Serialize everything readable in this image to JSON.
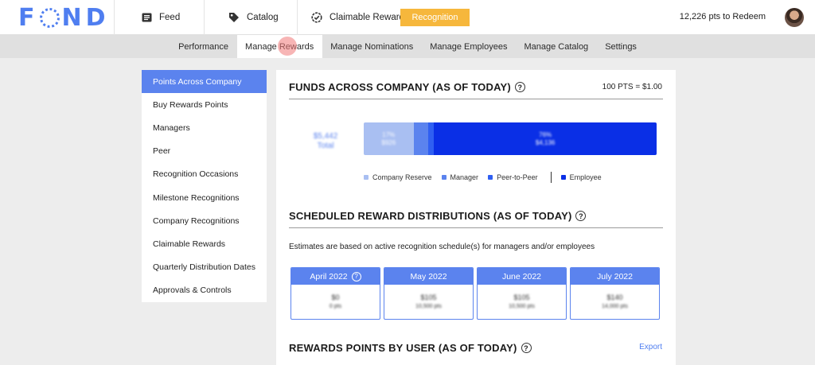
{
  "brand": {
    "logo_text": "FOND",
    "accent": "#5b83ee",
    "button_color": "#f6b73c"
  },
  "topnav": {
    "items": [
      {
        "label": "Feed",
        "icon": "feed-icon"
      },
      {
        "label": "Catalog",
        "icon": "tag-icon"
      },
      {
        "label": "Claimable Rewards",
        "icon": "check-badge-icon"
      }
    ],
    "recognition_button": "Recognition",
    "points": "12,226 pts to Redeem"
  },
  "subnav": {
    "tabs": [
      "Performance",
      "Manage Rewards",
      "Manage Nominations",
      "Manage Employees",
      "Manage Catalog",
      "Settings"
    ],
    "active": "Manage Rewards"
  },
  "sidebar": {
    "items": [
      "Points Across Company",
      "Buy Rewards Points",
      "Managers",
      "Peer",
      "Recognition Occasions",
      "Milestone Recognitions",
      "Company Recognitions",
      "Claimable Rewards",
      "Quarterly Distribution Dates",
      "Approvals & Controls"
    ],
    "active": "Points Across Company"
  },
  "funds": {
    "title": "FUNDS ACROSS COMPANY (AS OF TODAY)",
    "rate": "100 PTS = $1.00",
    "total_value": "$5,442",
    "total_label": "Total",
    "segments": [
      {
        "name": "Company Reserve",
        "color": "#a9bff2",
        "share": 0.17,
        "pct": "17%",
        "amt": "$926"
      },
      {
        "name": "Manager",
        "color": "#5b83ee",
        "share": 0.05,
        "pct": "",
        "amt": ""
      },
      {
        "name": "Peer-to-Peer",
        "color": "#2f5ff2",
        "share": 0.02,
        "pct": "",
        "amt": ""
      },
      {
        "name": "Employee",
        "color": "#0a2fe6",
        "share": 0.76,
        "pct": "76%",
        "amt": "$4,136"
      }
    ],
    "legend": [
      "Company Reserve",
      "Manager",
      "Peer-to-Peer",
      "Employee"
    ]
  },
  "scheduled": {
    "title": "SCHEDULED REWARD DISTRIBUTIONS (AS OF TODAY)",
    "estimate": "Estimates are based on active recognition schedule(s) for managers and/or employees",
    "months": [
      {
        "label": "April 2022",
        "value": "$0",
        "pts": "0 pts",
        "info": true
      },
      {
        "label": "May 2022",
        "value": "$105",
        "pts": "10,500 pts",
        "info": false
      },
      {
        "label": "June 2022",
        "value": "$105",
        "pts": "10,500 pts",
        "info": false
      },
      {
        "label": "July 2022",
        "value": "$140",
        "pts": "14,000 pts",
        "info": false
      }
    ]
  },
  "points_by_user": {
    "title": "REWARDS POINTS BY USER (AS OF TODAY)",
    "export": "Export"
  }
}
